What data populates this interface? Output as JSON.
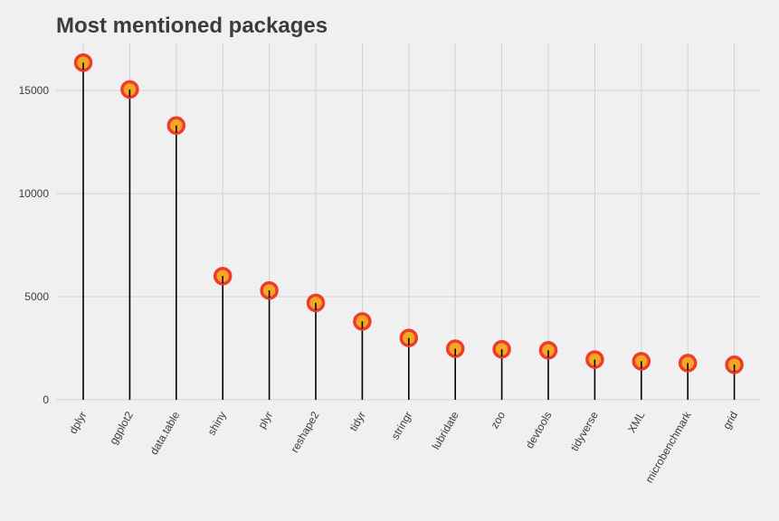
{
  "chart_data": {
    "type": "lollipop",
    "title": "Most mentioned packages",
    "xlabel": "",
    "ylabel": "",
    "categories": [
      "dplyr",
      "ggplot2",
      "data.table",
      "shiny",
      "plyr",
      "reshape2",
      "tidyr",
      "stringr",
      "lubridate",
      "zoo",
      "devtools",
      "tidyverse",
      "XML",
      "microbenchmark",
      "grid"
    ],
    "values": [
      16350,
      15050,
      13300,
      6000,
      5300,
      4700,
      3800,
      3000,
      2480,
      2450,
      2400,
      1950,
      1870,
      1780,
      1700
    ],
    "ylim": [
      0,
      17000
    ],
    "yticks": [
      0,
      5000,
      10000,
      15000
    ],
    "ytick_labels": [
      "0",
      "5000",
      "10000",
      "15000"
    ],
    "grid": true,
    "legend": "none",
    "x_tick_rotation": "-60 degrees",
    "colors": {
      "background": "#f0f0f0",
      "grid": "#d2d2d2",
      "stem": "#000000",
      "point_fill": "#f5a623",
      "point_outline": "#ef3b2c",
      "text": "#3c3c3c"
    }
  }
}
